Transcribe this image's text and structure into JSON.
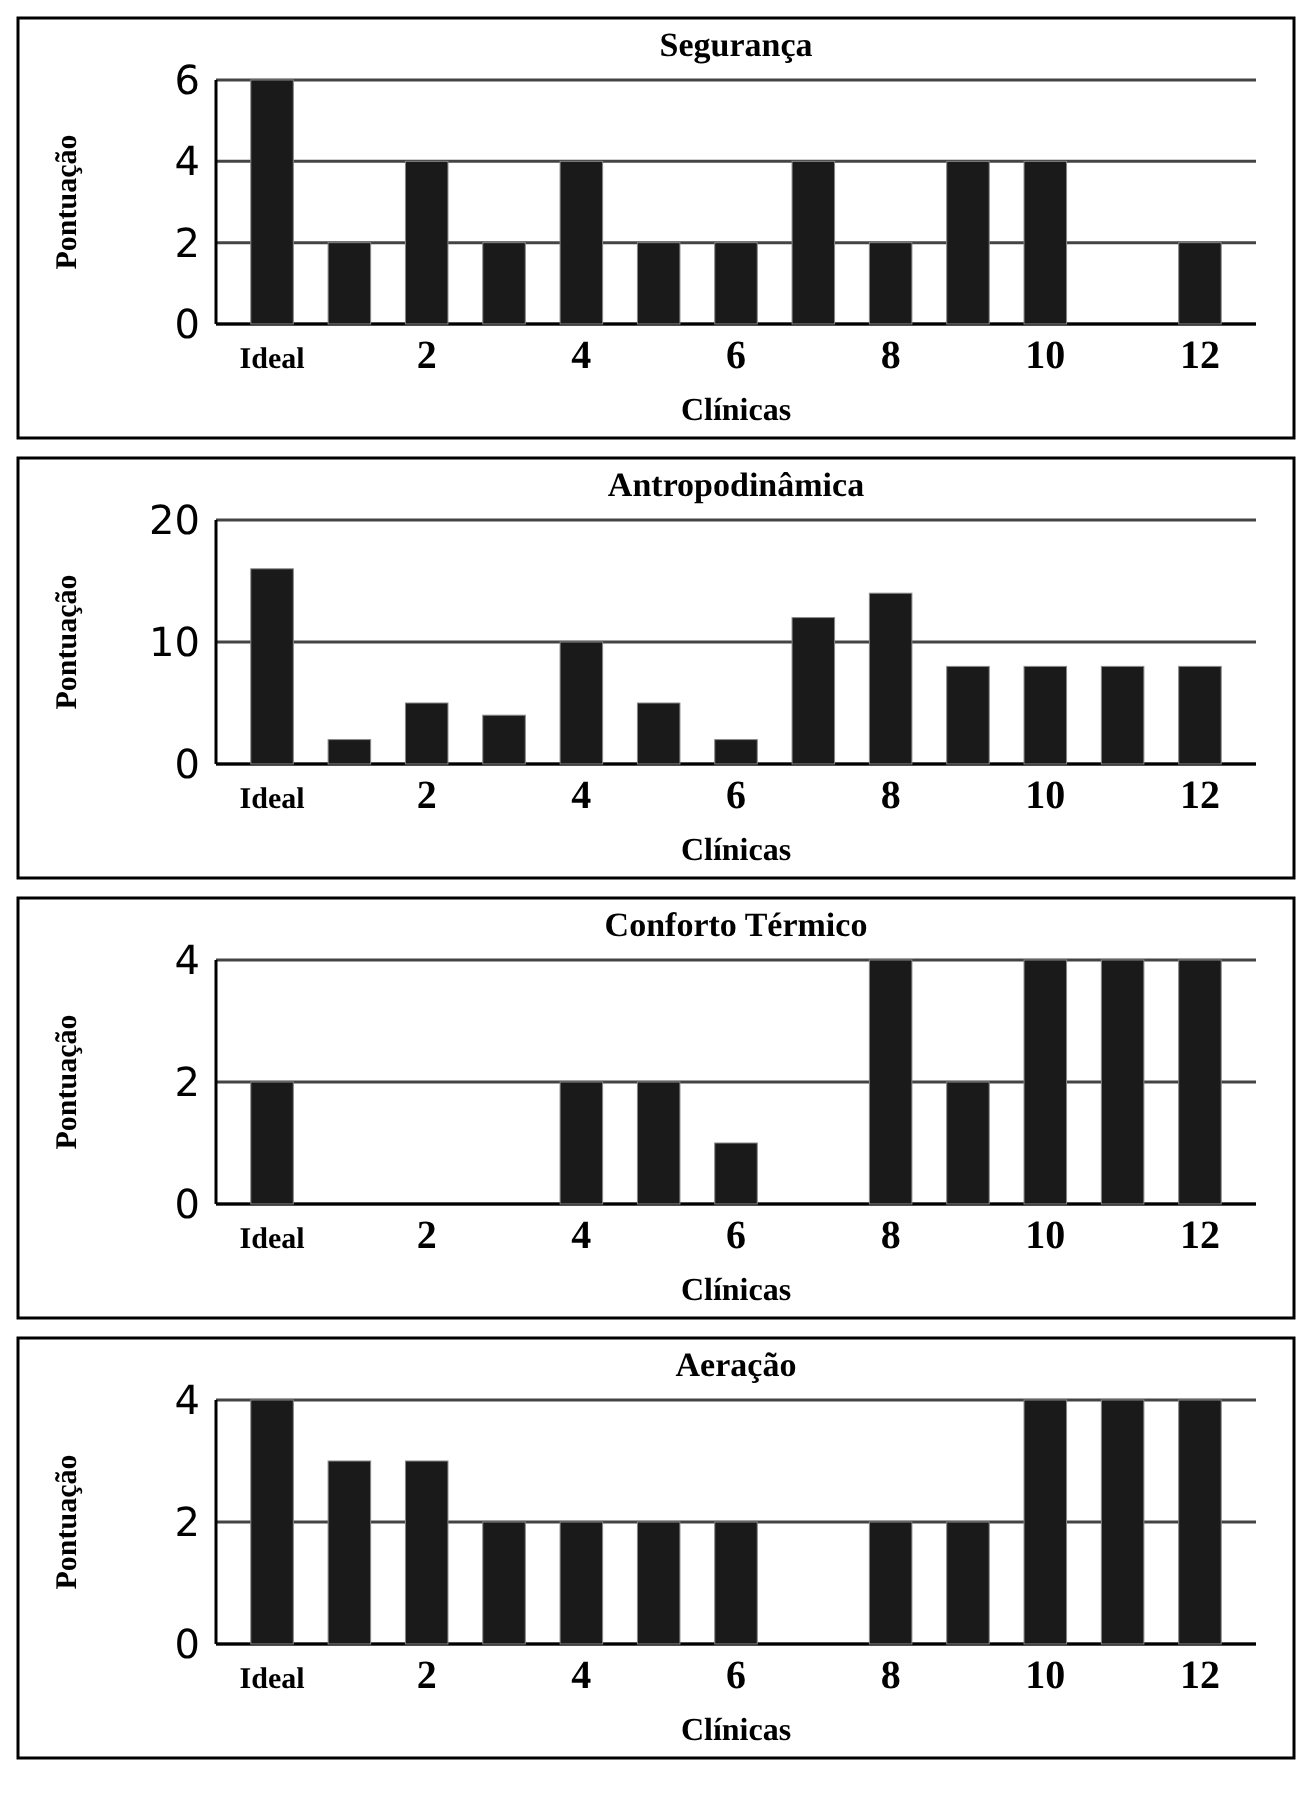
{
  "chart_data": [
    {
      "type": "bar",
      "title": "Segurança",
      "xlabel": "Clínicas",
      "ylabel": "Pontuação",
      "categories": [
        "Ideal",
        null,
        "2",
        null,
        "4",
        null,
        "6",
        null,
        "8",
        null,
        "10",
        null,
        "12"
      ],
      "values": [
        6,
        2,
        4,
        2,
        4,
        2,
        2,
        4,
        2,
        4,
        4,
        0,
        2
      ],
      "color": "#1a1a1a",
      "ylim": [
        0,
        6
      ],
      "yticks": [
        0,
        2,
        4,
        6
      ],
      "grid": "y"
    },
    {
      "type": "bar",
      "title": "Antropodinâmica",
      "xlabel": "Clínicas",
      "ylabel": "Pontuação",
      "categories": [
        "Ideal",
        null,
        "2",
        null,
        "4",
        null,
        "6",
        null,
        "8",
        null,
        "10",
        null,
        "12"
      ],
      "values": [
        16,
        2,
        5,
        4,
        10,
        5,
        2,
        12,
        14,
        8,
        8,
        8,
        8
      ],
      "color": "#1a1a1a",
      "ylim": [
        0,
        20
      ],
      "yticks": [
        0,
        10,
        20
      ],
      "grid": "y"
    },
    {
      "type": "bar",
      "title": "Conforto Térmico",
      "xlabel": "Clínicas",
      "ylabel": "Pontuação",
      "categories": [
        "Ideal",
        null,
        "2",
        null,
        "4",
        null,
        "6",
        null,
        "8",
        null,
        "10",
        null,
        "12"
      ],
      "values": [
        2,
        0,
        0,
        0,
        2,
        2,
        1,
        0,
        4,
        2,
        4,
        4,
        4
      ],
      "color": "#1a1a1a",
      "ylim": [
        0,
        4
      ],
      "yticks": [
        0,
        2,
        4
      ],
      "grid": "y"
    },
    {
      "type": "bar",
      "title": "Aeração",
      "xlabel": "Clínicas",
      "ylabel": "Pontuação",
      "categories": [
        "Ideal",
        null,
        "2",
        null,
        "4",
        null,
        "6",
        null,
        "8",
        null,
        "10",
        null,
        "12"
      ],
      "values": [
        4,
        3,
        3,
        2,
        2,
        2,
        2,
        0,
        2,
        2,
        4,
        4,
        4
      ],
      "color": "#1a1a1a",
      "ylim": [
        0,
        4
      ],
      "yticks": [
        0,
        2,
        4
      ],
      "grid": "y"
    }
  ]
}
